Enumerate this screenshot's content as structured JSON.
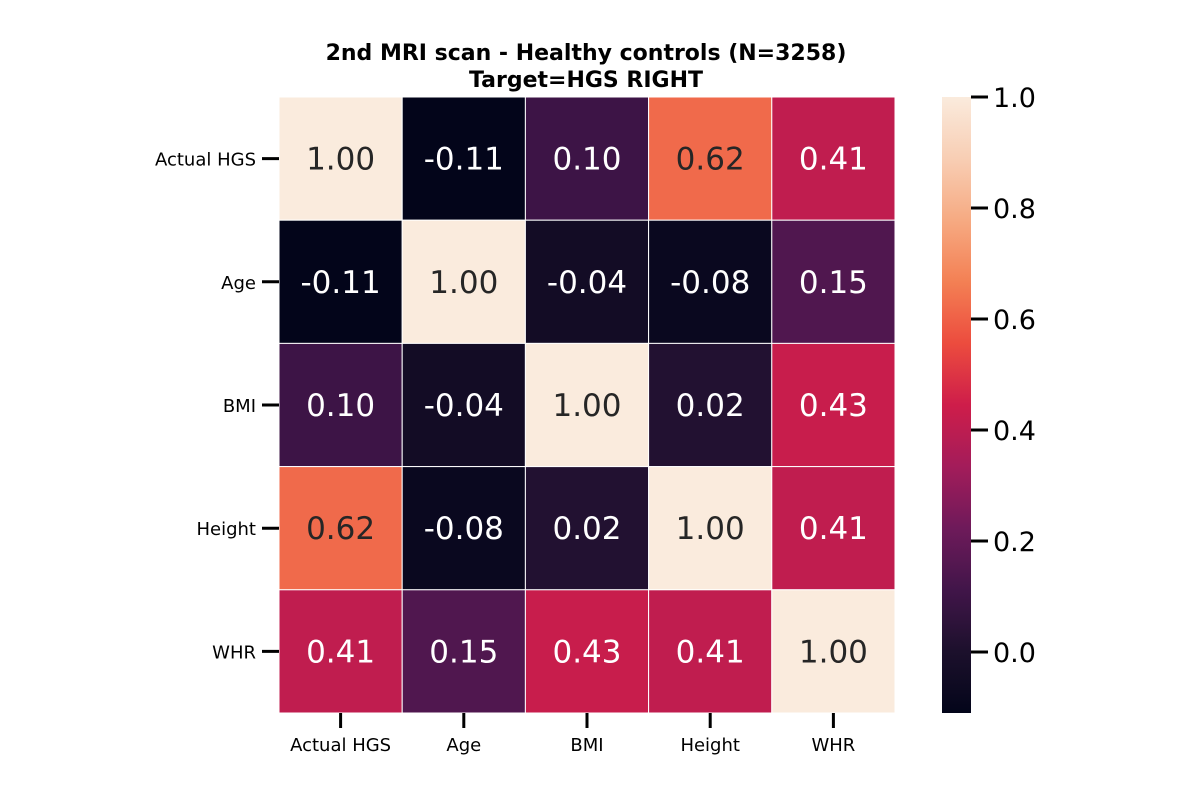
{
  "chart_data": {
    "type": "heatmap",
    "title": "2nd MRI scan - Healthy controls (N=3258)",
    "subtitle": "Target=HGS RIGHT",
    "xlabel": "",
    "ylabel": "",
    "x_categories": [
      "Actual HGS",
      "Age",
      "BMI",
      "Height",
      "WHR"
    ],
    "y_categories": [
      "Actual HGS",
      "Age",
      "BMI",
      "Height",
      "WHR"
    ],
    "values": [
      [
        1.0,
        -0.11,
        0.1,
        0.62,
        0.41
      ],
      [
        -0.11,
        1.0,
        -0.04,
        -0.08,
        0.15
      ],
      [
        0.1,
        -0.04,
        1.0,
        0.02,
        0.43
      ],
      [
        0.62,
        -0.08,
        0.02,
        1.0,
        0.41
      ],
      [
        0.41,
        0.15,
        0.43,
        0.41,
        1.0
      ]
    ],
    "value_format": "0.00",
    "colormap": "rocket",
    "vmin": -0.11,
    "vmax": 1.0,
    "colorbar": {
      "ticks": [
        0.0,
        0.2,
        0.4,
        0.6,
        0.8,
        1.0
      ],
      "tick_labels": [
        "0.0",
        "0.2",
        "0.4",
        "0.6",
        "0.8",
        "1.0"
      ],
      "placement": "right"
    },
    "grid": false,
    "cell_borders": "white",
    "colors": {
      "dark_text": "#262626",
      "light_text": "#ffffff",
      "cell_border": "#ffffff"
    }
  }
}
